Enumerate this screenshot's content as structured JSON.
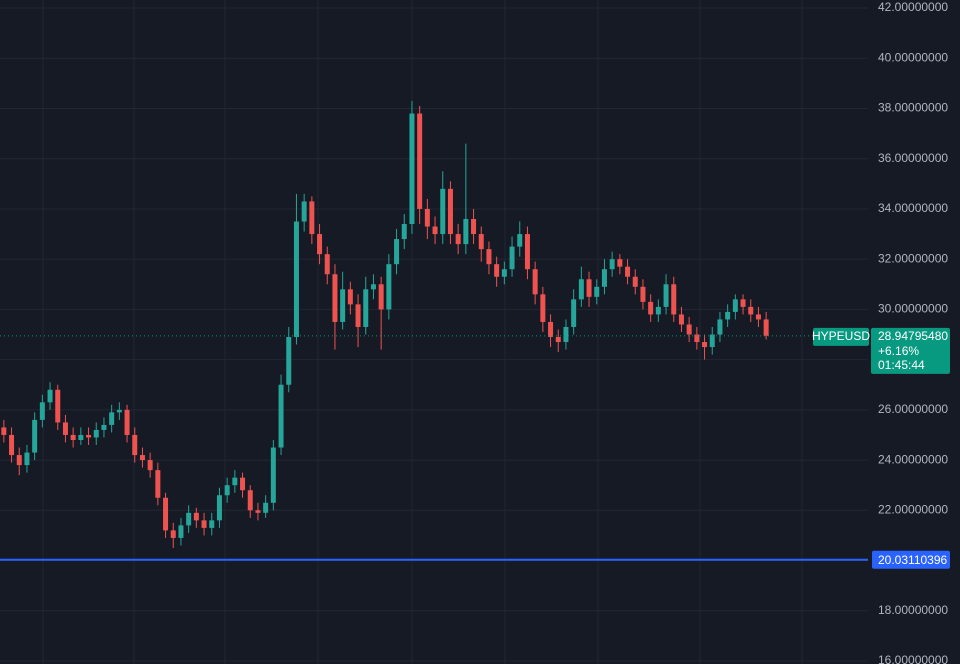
{
  "chart_data": {
    "type": "candlestick",
    "symbol": "HYPEUSD",
    "change": "+6.16%",
    "countdown": "01:45:44",
    "up_color": "#26a69a",
    "down_color": "#ef5350",
    "last_price": {
      "value": 28.9479548,
      "label": "28.94795480"
    },
    "last_price_color": "#089981",
    "level_line": 20.03110396,
    "level_line_color": "#2962ff",
    "ylim": [
      15.88,
      42.32
    ],
    "yticks": [
      {
        "value": 16,
        "label": "16.00000000"
      },
      {
        "value": 18,
        "label": "18.00000000"
      },
      {
        "value": 20,
        "label": "20.00000000"
      },
      {
        "value": 22,
        "label": "22.00000000"
      },
      {
        "value": 24,
        "label": "24.00000000"
      },
      {
        "value": 26,
        "label": "26.00000000"
      },
      {
        "value": 28,
        "label": "28.00000000"
      },
      {
        "value": 30,
        "label": "30.00000000"
      },
      {
        "value": 32,
        "label": "32.00000000"
      },
      {
        "value": 34,
        "label": "34.00000000"
      },
      {
        "value": 36,
        "label": "36.00000000"
      },
      {
        "value": 38,
        "label": "38.00000000"
      },
      {
        "value": 40,
        "label": "40.00000000"
      },
      {
        "value": 42,
        "label": "42.00000000"
      }
    ],
    "grid": true,
    "open": [
      25.3,
      25.0,
      24.2,
      23.8,
      24.3,
      25.6,
      26.3,
      26.8,
      25.5,
      25.0,
      24.8,
      25.0,
      24.9,
      25.2,
      25.4,
      25.9,
      26.0,
      25.0,
      24.2,
      24.0,
      23.6,
      22.5,
      21.2,
      20.9,
      21.4,
      21.9,
      21.6,
      21.3,
      21.6,
      22.6,
      23.0,
      23.3,
      22.8,
      22.0,
      21.9,
      22.3,
      24.5,
      27.0,
      28.9,
      33.5,
      34.3,
      33.0,
      32.2,
      31.4,
      29.5,
      30.8,
      30.2,
      29.3,
      30.8,
      31.0,
      30.0,
      31.8,
      32.8,
      33.4,
      37.8,
      34.0,
      33.3,
      33.0,
      34.8,
      33.0,
      32.6,
      33.6,
      33.0,
      32.4,
      31.8,
      31.3,
      31.6,
      32.5,
      33.0,
      31.6,
      30.6,
      29.5,
      28.9,
      28.7,
      29.3,
      30.4,
      31.2,
      30.5,
      30.9,
      31.6,
      32.0,
      31.7,
      31.3,
      30.9,
      30.3,
      29.8,
      30.1,
      31.0,
      29.8,
      29.4,
      29.0,
      28.7,
      28.5,
      29.0,
      29.6,
      29.9,
      30.4,
      30.1,
      29.8,
      29.6
    ],
    "high": [
      25.6,
      25.3,
      24.5,
      24.6,
      25.9,
      26.6,
      27.1,
      27.0,
      25.8,
      25.3,
      25.3,
      25.3,
      25.5,
      25.7,
      26.2,
      26.3,
      26.2,
      25.3,
      24.5,
      24.3,
      23.9,
      22.7,
      21.5,
      21.7,
      22.2,
      22.1,
      21.9,
      21.9,
      22.9,
      23.3,
      23.6,
      23.5,
      23.0,
      22.3,
      22.6,
      24.8,
      27.4,
      29.3,
      34.6,
      34.6,
      34.5,
      33.4,
      32.5,
      31.8,
      31.5,
      31.1,
      30.6,
      31.3,
      31.4,
      31.3,
      32.2,
      33.2,
      33.8,
      38.3,
      38.1,
      34.4,
      33.7,
      35.5,
      35.1,
      33.4,
      36.6,
      34.0,
      33.3,
      32.7,
      32.1,
      31.9,
      32.9,
      33.5,
      33.3,
      31.9,
      30.9,
      29.8,
      29.2,
      29.6,
      30.8,
      31.7,
      31.5,
      31.2,
      32.0,
      32.3,
      32.2,
      32.0,
      31.6,
      31.2,
      30.6,
      30.4,
      31.4,
      31.3,
      30.1,
      29.7,
      29.3,
      29.0,
      29.3,
      29.9,
      30.2,
      30.6,
      30.6,
      30.4,
      30.1,
      29.9
    ],
    "low": [
      24.7,
      23.9,
      23.4,
      23.5,
      24.0,
      25.3,
      26.0,
      25.2,
      24.7,
      24.5,
      24.6,
      24.6,
      24.6,
      24.9,
      25.1,
      25.6,
      24.7,
      23.9,
      23.7,
      23.3,
      22.2,
      20.9,
      20.5,
      20.6,
      21.1,
      21.3,
      21.0,
      21.0,
      21.3,
      22.3,
      22.7,
      22.5,
      21.7,
      21.6,
      21.7,
      22.0,
      24.2,
      26.7,
      28.6,
      33.1,
      32.6,
      31.8,
      31.0,
      28.4,
      29.2,
      29.8,
      28.5,
      29.0,
      30.4,
      28.4,
      29.6,
      31.4,
      32.4,
      33.0,
      33.4,
      32.8,
      32.6,
      32.6,
      32.6,
      32.2,
      32.2,
      32.6,
      31.9,
      31.4,
      30.9,
      31.0,
      31.3,
      32.1,
      31.2,
      30.2,
      29.1,
      28.5,
      28.3,
      28.4,
      29.0,
      30.1,
      30.1,
      30.2,
      30.6,
      31.3,
      31.4,
      31.0,
      30.6,
      30.0,
      29.5,
      29.5,
      29.8,
      29.5,
      29.1,
      28.7,
      28.4,
      28.0,
      28.2,
      28.7,
      29.3,
      29.6,
      29.8,
      29.5,
      29.3,
      28.8
    ],
    "close": [
      25.0,
      24.2,
      23.8,
      24.3,
      25.6,
      26.3,
      26.8,
      25.5,
      25.0,
      24.8,
      25.0,
      24.9,
      25.2,
      25.4,
      25.9,
      26.0,
      25.0,
      24.2,
      24.0,
      23.6,
      22.5,
      21.2,
      20.9,
      21.4,
      21.9,
      21.6,
      21.3,
      21.6,
      22.6,
      23.0,
      23.3,
      22.8,
      22.0,
      21.9,
      22.3,
      24.5,
      27.0,
      28.9,
      33.5,
      34.3,
      33.0,
      32.2,
      31.4,
      29.5,
      30.8,
      30.2,
      29.3,
      30.8,
      31.0,
      30.0,
      31.8,
      32.8,
      33.4,
      37.8,
      34.0,
      33.3,
      33.0,
      34.8,
      33.0,
      32.6,
      33.6,
      33.0,
      32.4,
      31.8,
      31.3,
      31.6,
      32.5,
      33.0,
      31.6,
      30.6,
      29.5,
      28.9,
      28.7,
      29.3,
      30.4,
      31.2,
      30.5,
      30.9,
      31.6,
      32.0,
      31.7,
      31.3,
      30.9,
      30.3,
      29.8,
      30.1,
      31.0,
      29.8,
      29.4,
      29.0,
      28.7,
      28.5,
      29.0,
      29.6,
      29.9,
      30.4,
      30.1,
      29.8,
      29.6,
      28.95
    ]
  }
}
